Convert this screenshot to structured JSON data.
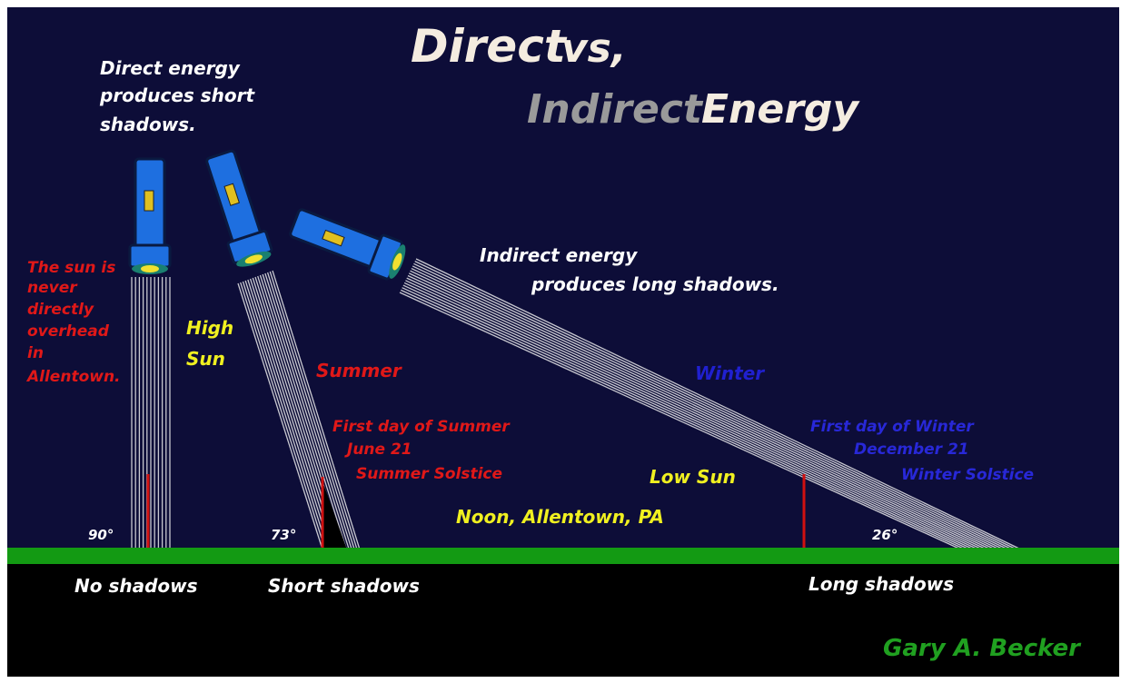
{
  "title": {
    "word_1": "Direct",
    "word_2": "vs,",
    "word_3": "Indirect",
    "word_4": "Energy"
  },
  "direct_note": [
    "Direct energy",
    "produces short",
    "shadows."
  ],
  "allentown_note": [
    "The sun is",
    "never",
    "directly",
    "overhead",
    "in",
    "Allentown."
  ],
  "high_sun": [
    "High",
    "Sun"
  ],
  "summer": {
    "label": "Summer",
    "lines": [
      "First day of Summer",
      "June  21",
      "Summer Solstice"
    ]
  },
  "indirect_note": [
    "Indirect energy",
    "produces long shadows."
  ],
  "winter": {
    "label": "Winter",
    "lines": [
      "First day of Winter",
      "December 21",
      "Winter Solstice"
    ]
  },
  "low_sun": "Low Sun",
  "location": "Noon, Allentown, PA",
  "angles": [
    "90°",
    "73°",
    "26°"
  ],
  "shadows": [
    "No shadows",
    "Short shadows",
    "Long shadows"
  ],
  "author": "Gary A. Becker"
}
